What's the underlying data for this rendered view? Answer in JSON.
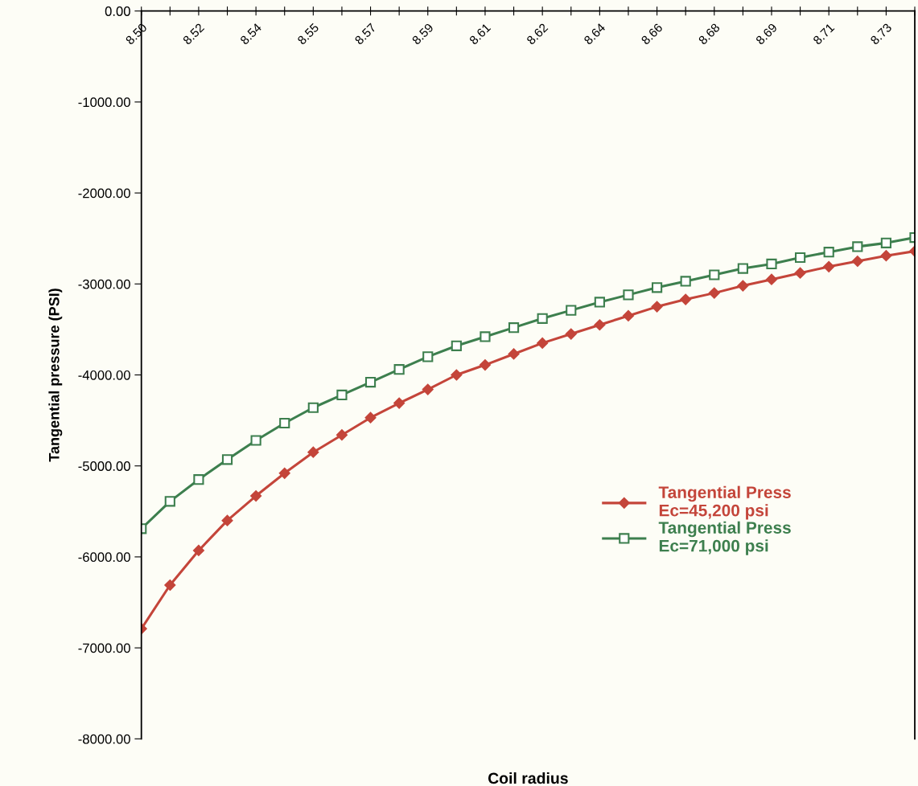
{
  "chart_data": {
    "type": "line",
    "xlabel": "Coil radius",
    "ylabel": "Tangential pressure (PSI)",
    "categories": [
      "8.50",
      null,
      "8.52",
      null,
      "8.54",
      null,
      "8.55",
      null,
      "8.57",
      null,
      "8.59",
      null,
      "8.61",
      null,
      "8.62",
      null,
      "8.64",
      null,
      "8.66",
      null,
      "8.68",
      null,
      "8.69",
      null,
      "8.71",
      null,
      "8.73",
      null
    ],
    "ylim": [
      -8000,
      0
    ],
    "yticks": [
      {
        "value": 0,
        "label": "0.00"
      },
      {
        "value": -1000,
        "label": "-1000.00"
      },
      {
        "value": -2000,
        "label": "-2000.00"
      },
      {
        "value": -3000,
        "label": "-3000.00"
      },
      {
        "value": -4000,
        "label": "-4000.00"
      },
      {
        "value": -5000,
        "label": "-5000.00"
      },
      {
        "value": -6000,
        "label": "-6000.00"
      },
      {
        "value": -7000,
        "label": "-7000.00"
      },
      {
        "value": -8000,
        "label": "-8000.00"
      }
    ],
    "grid": false,
    "legend": "right",
    "line_style": "solid",
    "series": [
      {
        "name": "Tangential Press\nEc=45,200 psi",
        "color": "#c4453a",
        "marker": "diamond",
        "values": [
          -6790,
          -6310,
          -5930,
          -5600,
          -5330,
          -5080,
          -4850,
          -4660,
          -4470,
          -4310,
          -4160,
          -4000,
          -3890,
          -3770,
          -3650,
          -3550,
          -3450,
          -3350,
          -3250,
          -3170,
          -3100,
          -3020,
          -2950,
          -2880,
          -2810,
          -2750,
          -2690,
          -2640
        ]
      },
      {
        "name": "Tangential Press\nEc=71,000 psi",
        "color": "#3d7f4e",
        "marker": "square",
        "values": [
          -5690,
          -5390,
          -5150,
          -4930,
          -4720,
          -4530,
          -4360,
          -4220,
          -4080,
          -3940,
          -3800,
          -3680,
          -3580,
          -3480,
          -3380,
          -3290,
          -3200,
          -3120,
          -3040,
          -2970,
          -2900,
          -2830,
          -2780,
          -2710,
          -2650,
          -2590,
          -2550,
          -2490
        ]
      }
    ]
  }
}
